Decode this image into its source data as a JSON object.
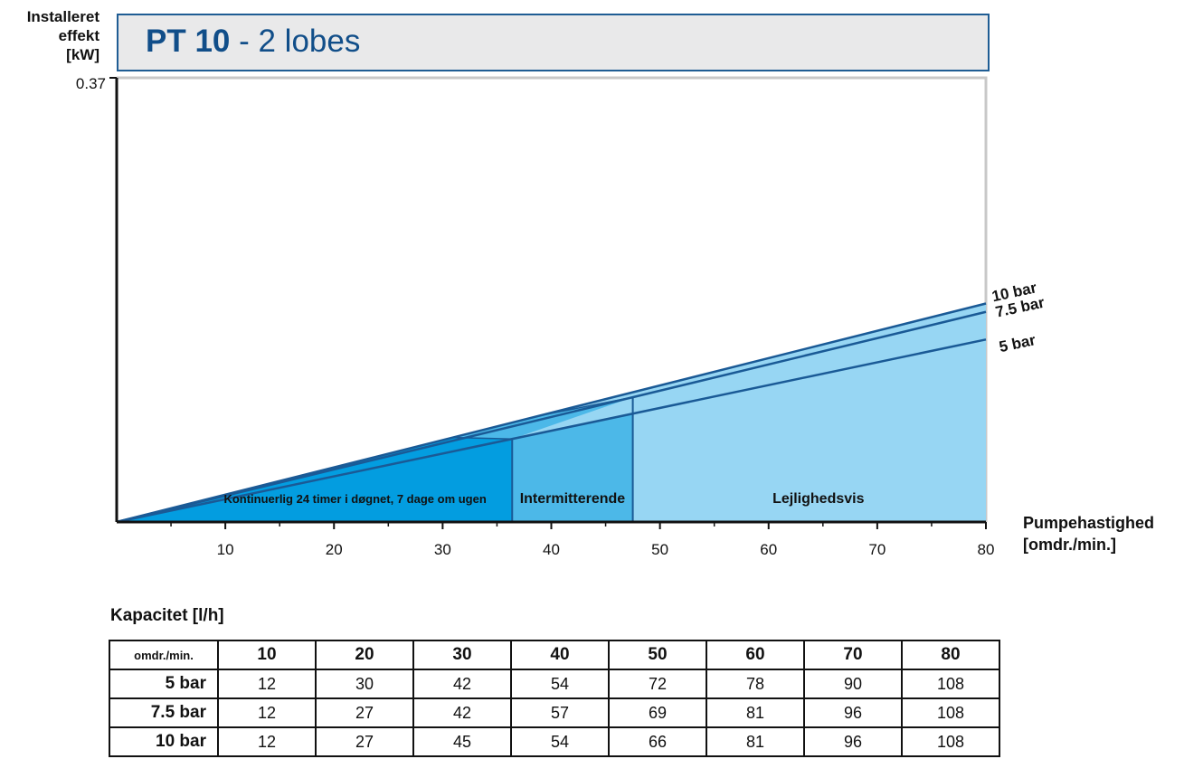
{
  "ylabel": [
    "Installeret",
    "effekt",
    "[kW]"
  ],
  "title": {
    "bold": "PT 10",
    "rest": " - 2 lobes"
  },
  "xlabel": [
    "Pumpehastighed",
    "[omdr./min.]"
  ],
  "colors": {
    "title_text": "#114e89",
    "line": "#1a5a96",
    "continuous": "#039de0",
    "intermittent": "#4cb8e8",
    "occasional": "#97d6f3"
  },
  "chart_data": {
    "type": "area",
    "xlim": [
      0,
      80
    ],
    "ylim": [
      0,
      0.37
    ],
    "ytick_labels": [
      "0.37"
    ],
    "xtick_labels": [
      "10",
      "20",
      "30",
      "40",
      "50",
      "60",
      "70",
      "80"
    ],
    "xticks": [
      10,
      20,
      30,
      40,
      50,
      60,
      70,
      80
    ],
    "series": [
      {
        "name": "10 bar",
        "x": [
          0,
          80
        ],
        "y": [
          0,
          0.182
        ]
      },
      {
        "name": "7.5 bar",
        "x": [
          0,
          80
        ],
        "y": [
          0,
          0.175
        ]
      },
      {
        "name": "5 bar",
        "x": [
          0,
          80
        ],
        "y": [
          0,
          0.152
        ]
      }
    ],
    "regions": [
      {
        "label": "Kontinuerlig 24 timer i døgnet, 7 dage om ugen",
        "x_from": 0,
        "x_to": 36.4
      },
      {
        "label": "Intermitterende",
        "x_from": 36.4,
        "x_to": 47.5
      },
      {
        "label": "Lejlighedsvis",
        "x_from": 47.5,
        "x_to": 80
      }
    ]
  },
  "table": {
    "title": "Kapacitet [l/h]",
    "header_label": "omdr./min.",
    "columns": [
      "10",
      "20",
      "30",
      "40",
      "50",
      "60",
      "70",
      "80"
    ],
    "rows": [
      {
        "label": "5 bar",
        "values": [
          "12",
          "30",
          "42",
          "54",
          "72",
          "78",
          "90",
          "108"
        ]
      },
      {
        "label": "7.5 bar",
        "values": [
          "12",
          "27",
          "42",
          "57",
          "69",
          "81",
          "96",
          "108"
        ]
      },
      {
        "label": "10 bar",
        "values": [
          "12",
          "27",
          "45",
          "54",
          "66",
          "81",
          "96",
          "108"
        ]
      }
    ]
  }
}
